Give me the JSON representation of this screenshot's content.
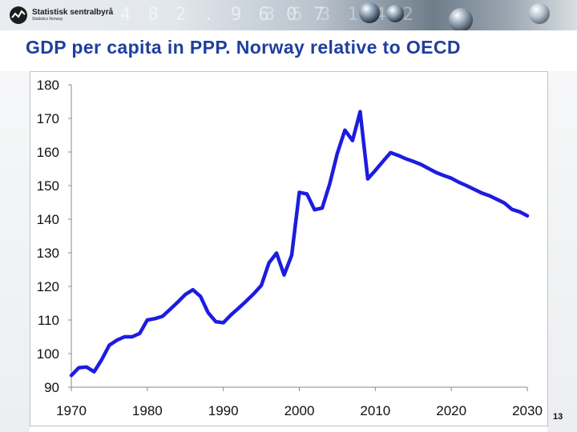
{
  "header": {
    "logo_name": "Statistisk sentralbyrå",
    "logo_sub": "Statistics Norway"
  },
  "slide": {
    "title": "GDP per capita in PPP. Norway relative to OECD",
    "page_number": "13"
  },
  "colors": {
    "line": "#1c1ce0",
    "title": "#1e3f9e",
    "axis": "#8a8a8a"
  },
  "chart_data": {
    "type": "line",
    "title": "GDP per capita in PPP. Norway relative to OECD",
    "xlabel": "",
    "ylabel": "",
    "xlim": [
      1970,
      2030
    ],
    "ylim": [
      90,
      180
    ],
    "x_ticks": [
      1970,
      1980,
      1990,
      2000,
      2010,
      2020,
      2030
    ],
    "y_ticks": [
      90,
      100,
      110,
      120,
      130,
      140,
      150,
      160,
      170,
      180
    ],
    "grid": false,
    "legend": "none",
    "series": [
      {
        "x": [
          1970,
          1971,
          1972,
          1973,
          1974,
          1975,
          1976,
          1977,
          1978,
          1979,
          1980,
          1981,
          1982,
          1983,
          1984,
          1985,
          1986,
          1987,
          1988,
          1989,
          1990,
          1991,
          1992,
          1993,
          1994,
          1995,
          1996,
          1997,
          1998,
          1999,
          2000,
          2001,
          2002,
          2003,
          2004,
          2005,
          2006,
          2007,
          2008,
          2009,
          2010,
          2011,
          2012,
          2013,
          2014,
          2015,
          2016,
          2017,
          2018,
          2019,
          2020,
          2021,
          2022,
          2023,
          2024,
          2025,
          2026,
          2027,
          2028,
          2029,
          2030
        ],
        "values": [
          93.5,
          95.8,
          96.0,
          94.6,
          98.2,
          102.5,
          104.0,
          105.0,
          105.0,
          106.0,
          110.0,
          110.4,
          111.1,
          113.2,
          115.3,
          117.6,
          119.0,
          117.0,
          112.2,
          109.5,
          109.2,
          111.5,
          113.5,
          115.6,
          117.8,
          120.3,
          127.0,
          129.9,
          123.4,
          129.3,
          148.0,
          147.5,
          142.8,
          143.3,
          150.5,
          159.6,
          166.5,
          163.4,
          172.0,
          152.0,
          154.5,
          157.2,
          159.8,
          159.0,
          158.0,
          157.2,
          156.3,
          155.1,
          153.9,
          153.0,
          152.2,
          151.0,
          150.0,
          148.9,
          147.8,
          147.0,
          145.9,
          144.8,
          142.9,
          142.2,
          141.0
        ]
      }
    ]
  }
}
